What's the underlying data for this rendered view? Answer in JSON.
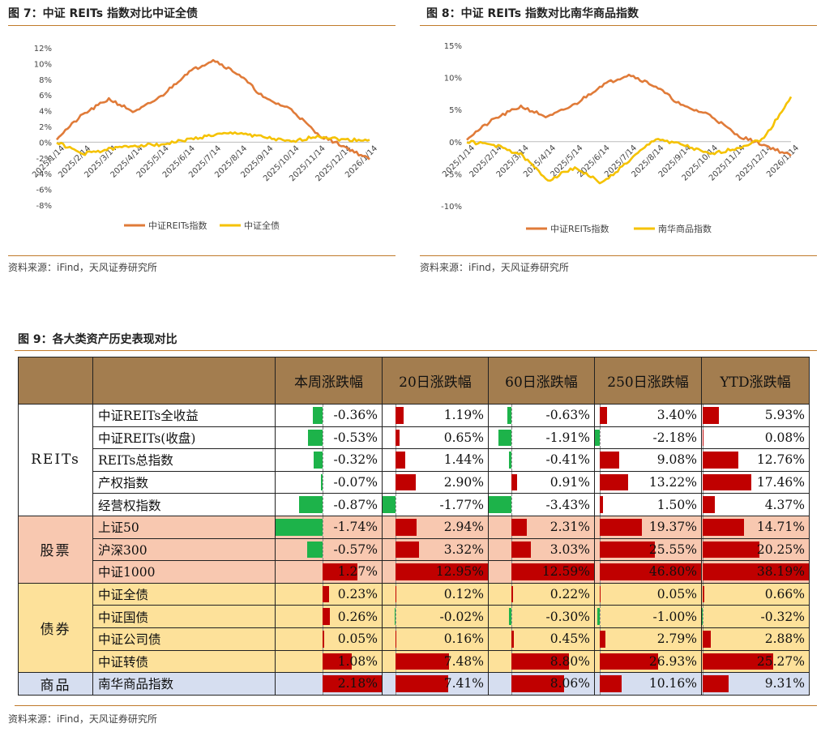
{
  "fig7": {
    "title": "图 7：中证 REITs 指数对比中证全债",
    "source": "资料来源：iFind，天风证券研究所",
    "chart_data": {
      "type": "line",
      "x": [
        "2025/1/14",
        "2025/2/14",
        "2025/3/14",
        "2025/4/14",
        "2025/5/14",
        "2025/6/14",
        "2025/7/14",
        "2025/8/14",
        "2025/9/14",
        "2025/10/14",
        "2025/11/14",
        "2025/12/14",
        "2026/1/14"
      ],
      "series": [
        {
          "name": "中证REITs指数",
          "color": "#e07b39",
          "values": [
            0.5,
            3.5,
            5.5,
            3.8,
            5.8,
            8.8,
            10.5,
            8.6,
            5.5,
            4.2,
            1.0,
            -0.5,
            -2.2
          ]
        },
        {
          "name": "中证全债",
          "color": "#f5c200",
          "values": [
            0.0,
            -1.5,
            -0.9,
            -0.4,
            -0.3,
            0.3,
            0.9,
            1.2,
            0.6,
            0.0,
            0.8,
            0.3,
            0.3
          ]
        }
      ],
      "ylim": [
        -8,
        12
      ],
      "yticks": [
        "12%",
        "10%",
        "8%",
        "6%",
        "4%",
        "2%",
        "0%",
        "-2%",
        "-4%",
        "-6%",
        "-8%"
      ]
    }
  },
  "fig8": {
    "title": "图 8：中证 REITs 指数对比南华商品指数",
    "source": "资料来源：iFind，天风证券研究所",
    "chart_data": {
      "type": "line",
      "x": [
        "2025/1/14",
        "2025/2/14",
        "2025/3/14",
        "2025/4/14",
        "2025/5/14",
        "2025/6/14",
        "2025/7/14",
        "2025/8/14",
        "2025/9/14",
        "2025/10/14",
        "2025/11/14",
        "2025/12/14",
        "2026/1/14"
      ],
      "series": [
        {
          "name": "中证REITs指数",
          "color": "#e07b39",
          "values": [
            0.5,
            3.5,
            5.5,
            3.8,
            5.8,
            8.8,
            10.5,
            8.6,
            5.5,
            4.2,
            1.0,
            -0.5,
            -2.2
          ]
        },
        {
          "name": "南华商品指数",
          "color": "#f5c200",
          "values": [
            0.0,
            -0.5,
            -2.0,
            -6.0,
            -4.0,
            -6.5,
            -3.0,
            0.5,
            -0.5,
            -2.0,
            -1.0,
            0.5,
            7.0
          ]
        }
      ],
      "ylim": [
        -10,
        15
      ],
      "yticks": [
        "15%",
        "10%",
        "5%",
        "0%",
        "-5%",
        "-10%"
      ]
    }
  },
  "fig9": {
    "title": "图 9：各大类资产历史表现对比",
    "source": "资料来源：iFind，天风证券研究所",
    "chart_data": {
      "type": "table",
      "columns": [
        "本周涨跌幅",
        "20日涨跌幅",
        "60日涨跌幅",
        "250日涨跌幅",
        "YTD涨跌幅"
      ],
      "groups": [
        {
          "name": "REITs",
          "bg": "#ffffff",
          "rows": [
            {
              "name": "中证REITs全收益",
              "values": [
                -0.36,
                1.19,
                -0.63,
                3.4,
                5.93
              ],
              "labels": [
                "-0.36%",
                "1.19%",
                "-0.63%",
                "3.40%",
                "5.93%"
              ]
            },
            {
              "name": "中证REITs(收盘)",
              "values": [
                -0.53,
                0.65,
                -1.91,
                -2.18,
                0.08
              ],
              "labels": [
                "-0.53%",
                "0.65%",
                "-1.91%",
                "-2.18%",
                "0.08%"
              ]
            },
            {
              "name": "REITs总指数",
              "values": [
                -0.32,
                1.44,
                -0.41,
                9.08,
                12.76
              ],
              "labels": [
                "-0.32%",
                "1.44%",
                "-0.41%",
                "9.08%",
                "12.76%"
              ]
            },
            {
              "name": "产权指数",
              "values": [
                -0.07,
                2.9,
                0.91,
                13.22,
                17.46
              ],
              "labels": [
                "-0.07%",
                "2.90%",
                "0.91%",
                "13.22%",
                "17.46%"
              ]
            },
            {
              "name": "经营权指数",
              "values": [
                -0.87,
                -1.77,
                -3.43,
                1.5,
                4.37
              ],
              "labels": [
                "-0.87%",
                "-1.77%",
                "-3.43%",
                "1.50%",
                "4.37%"
              ]
            }
          ]
        },
        {
          "name": "股票",
          "bg": "#f8c8b0",
          "rows": [
            {
              "name": "上证50",
              "values": [
                -1.74,
                2.94,
                2.31,
                19.37,
                14.71
              ],
              "labels": [
                "-1.74%",
                "2.94%",
                "2.31%",
                "19.37%",
                "14.71%"
              ]
            },
            {
              "name": "沪深300",
              "values": [
                -0.57,
                3.32,
                3.03,
                25.55,
                20.25
              ],
              "labels": [
                "-0.57%",
                "3.32%",
                "3.03%",
                "25.55%",
                "20.25%"
              ]
            },
            {
              "name": "中证1000",
              "values": [
                1.27,
                12.95,
                12.59,
                46.8,
                38.19
              ],
              "labels": [
                "1.27%",
                "12.95%",
                "12.59%",
                "46.80%",
                "38.19%"
              ]
            }
          ]
        },
        {
          "name": "债券",
          "bg": "#fde19a",
          "rows": [
            {
              "name": "中证全债",
              "values": [
                0.23,
                0.12,
                0.22,
                0.05,
                0.66
              ],
              "labels": [
                "0.23%",
                "0.12%",
                "0.22%",
                "0.05%",
                "0.66%"
              ]
            },
            {
              "name": "中证国债",
              "values": [
                0.26,
                -0.02,
                -0.3,
                -1.0,
                -0.32
              ],
              "labels": [
                "0.26%",
                "-0.02%",
                "-0.30%",
                "-1.00%",
                "-0.32%"
              ]
            },
            {
              "name": "中证公司债",
              "values": [
                0.05,
                0.16,
                0.45,
                2.79,
                2.88
              ],
              "labels": [
                "0.05%",
                "0.16%",
                "0.45%",
                "2.79%",
                "2.88%"
              ]
            },
            {
              "name": "中证转债",
              "values": [
                1.08,
                7.48,
                8.8,
                26.93,
                25.27
              ],
              "labels": [
                "1.08%",
                "7.48%",
                "8.80%",
                "26.93%",
                "25.27%"
              ]
            }
          ]
        },
        {
          "name": "商品",
          "bg": "#d6def0",
          "rows": [
            {
              "name": "南华商品指数",
              "values": [
                2.18,
                7.41,
                8.06,
                10.16,
                9.31
              ],
              "labels": [
                "2.18%",
                "7.41%",
                "8.06%",
                "10.16%",
                "9.31%"
              ]
            }
          ]
        }
      ]
    }
  },
  "colors": {
    "positive": "#c00000",
    "negative": "#1db34a",
    "header": "#a37d4f"
  }
}
